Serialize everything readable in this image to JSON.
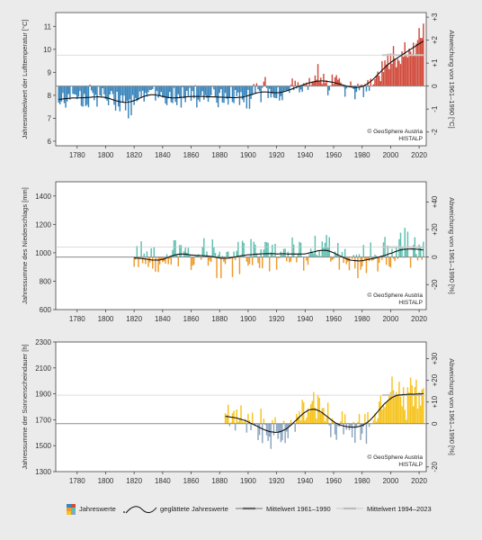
{
  "credit": [
    "© GeoSphere Austria",
    "HISTALP"
  ],
  "legend": {
    "annual": "Jahreswerte",
    "smoothed": "geglättete Jahreswerte",
    "mean_ref": "Mittelwert 1961–1990",
    "mean_recent": "Mittelwert 1994–2023"
  },
  "colors": {
    "temp_pos": "#d14b3c",
    "temp_neg": "#3a85bb",
    "prec_pos": "#5ec0b1",
    "prec_neg": "#ee9a2c",
    "sun_pos": "#f6c41f",
    "sun_neg": "#8ca5bf",
    "smooth": "#111111",
    "ref": "#8a8a8a",
    "recent": "#c8c8c8"
  },
  "chart_data": [
    {
      "type": "bar",
      "name": "temperature",
      "ylabel": "Jahresmittelwert der Lufttemperatur [°C]",
      "y2label": "Abweichung von 1961–1990 [°C]",
      "xlim": [
        1765,
        2025
      ],
      "ylim": [
        5.8,
        11.6
      ],
      "yticks": [
        6,
        7,
        8,
        9,
        10,
        11
      ],
      "y2ticks": [
        "-2",
        "-1",
        "0",
        "+1",
        "+2",
        "+3"
      ],
      "baseline": 8.4,
      "ref_mean": 8.4,
      "recent_mean": 9.75,
      "start_year": 1767,
      "end_year": 2023,
      "anchors": [
        [
          1767,
          7.7
        ],
        [
          1780,
          7.9
        ],
        [
          1800,
          7.9
        ],
        [
          1815,
          7.6
        ],
        [
          1830,
          8.0
        ],
        [
          1850,
          7.9
        ],
        [
          1870,
          8.1
        ],
        [
          1890,
          7.7
        ],
        [
          1910,
          8.2
        ],
        [
          1930,
          8.3
        ],
        [
          1950,
          8.7
        ],
        [
          1970,
          8.3
        ],
        [
          1985,
          8.3
        ],
        [
          1995,
          9.1
        ],
        [
          2005,
          9.6
        ],
        [
          2015,
          10.1
        ],
        [
          2023,
          10.7
        ]
      ],
      "amplitude": 0.6,
      "smooth_window": 7
    },
    {
      "type": "bar",
      "name": "precipitation",
      "ylabel": "Jahressumme des Niederschlags [mm]",
      "y2label": "Abweichung von 1961–1990 [%]",
      "xlim": [
        1765,
        2025
      ],
      "ylim": [
        600,
        1500
      ],
      "yticks": [
        600,
        800,
        1000,
        1200,
        1400
      ],
      "y2ticks": [
        "-20",
        "0",
        "+20",
        "+40"
      ],
      "baseline": 970,
      "ref_mean": 970,
      "recent_mean": 1040,
      "start_year": 1820,
      "end_year": 2023,
      "anchors": [
        [
          1820,
          990
        ],
        [
          1840,
          960
        ],
        [
          1860,
          1000
        ],
        [
          1880,
          950
        ],
        [
          1900,
          1000
        ],
        [
          1920,
          990
        ],
        [
          1940,
          990
        ],
        [
          1950,
          1060
        ],
        [
          1960,
          980
        ],
        [
          1975,
          960
        ],
        [
          1990,
          990
        ],
        [
          2005,
          1040
        ],
        [
          2015,
          1030
        ],
        [
          2023,
          1060
        ]
      ],
      "amplitude": 150,
      "smooth_window": 7
    },
    {
      "type": "bar",
      "name": "sunshine",
      "ylabel": "Jahressumme der Sonnenscheindauer [h]",
      "y2label": "Abweichung von 1961–1990 [%]",
      "xlim": [
        1765,
        2025
      ],
      "ylim": [
        1300,
        2300
      ],
      "yticks": [
        1300,
        1500,
        1700,
        1900,
        2100,
        2300
      ],
      "y2ticks": [
        "-20",
        "0",
        "+10",
        "+20",
        "+30"
      ],
      "baseline": 1670,
      "ref_mean": 1670,
      "recent_mean": 1890,
      "start_year": 1884,
      "end_year": 2023,
      "anchors": [
        [
          1884,
          1720
        ],
        [
          1900,
          1730
        ],
        [
          1912,
          1600
        ],
        [
          1925,
          1620
        ],
        [
          1935,
          1720
        ],
        [
          1947,
          1900
        ],
        [
          1955,
          1700
        ],
        [
          1975,
          1630
        ],
        [
          1985,
          1680
        ],
        [
          2000,
          1880
        ],
        [
          2010,
          1870
        ],
        [
          2023,
          1900
        ]
      ],
      "amplitude": 150,
      "smooth_window": 7
    }
  ],
  "xticks": [
    1780,
    1800,
    1820,
    1840,
    1860,
    1880,
    1900,
    1920,
    1940,
    1960,
    1980,
    2000,
    2020
  ]
}
